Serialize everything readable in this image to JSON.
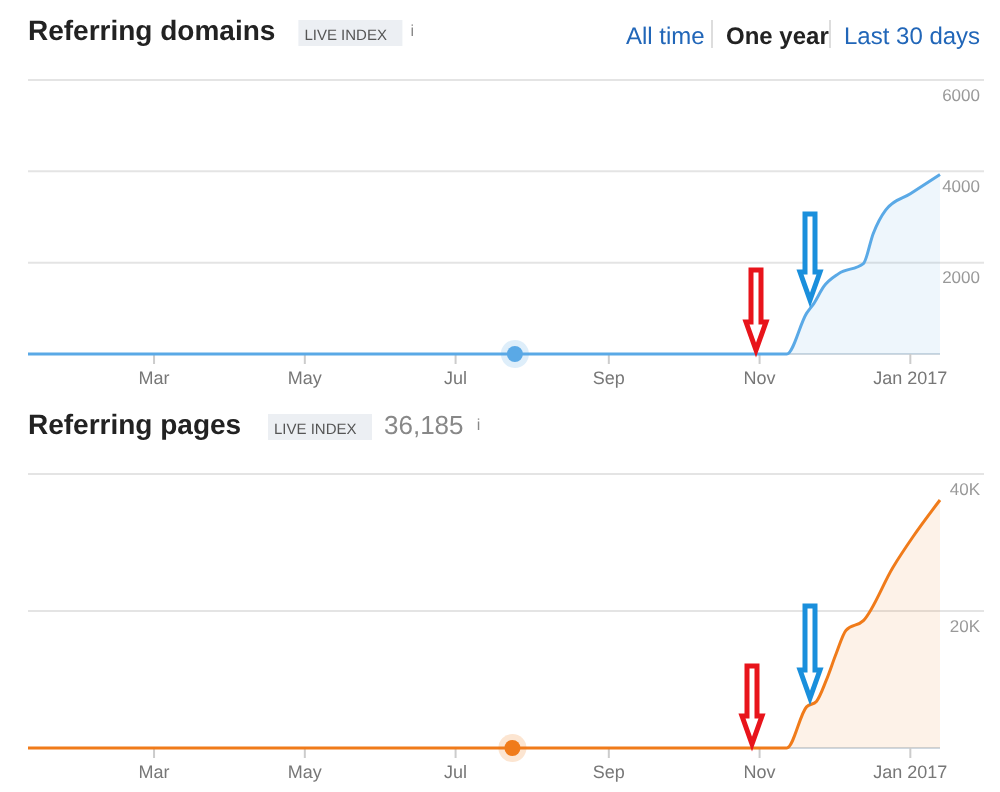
{
  "chart_data": [
    {
      "type": "area",
      "title": "Referring domains",
      "annotations": [
        "LIVE INDEX",
        "i",
        "All time",
        "One year",
        "Last 30 days"
      ],
      "xlim": [
        "2016-01-10",
        "2017-01-13"
      ],
      "xticks": [
        {
          "value": "2016-03-01",
          "label": "Mar"
        },
        {
          "value": "2016-05-01",
          "label": "May"
        },
        {
          "value": "2016-07-01",
          "label": "Jul"
        },
        {
          "value": "2016-09-01",
          "label": "Sep"
        },
        {
          "value": "2016-11-01",
          "label": "Nov"
        },
        {
          "value": "2017-01-01",
          "label": "Jan 2017"
        }
      ],
      "ylim": [
        0,
        6000
      ],
      "yticks": [
        2000,
        4000,
        6000
      ],
      "grid": "y",
      "series": [
        {
          "color": "#5aa9e6",
          "x": [
            "2016-01-10",
            "2016-11-12",
            "2016-11-20",
            "2016-11-23",
            "2016-11-27",
            "2016-12-03",
            "2016-12-13",
            "2016-12-17",
            "2016-12-22",
            "2017-01-01",
            "2017-01-13"
          ],
          "values": [
            0,
            0,
            890,
            1110,
            1480,
            1760,
            1980,
            2640,
            3150,
            3510,
            3930
          ]
        },
        {
          "type": "scatter",
          "marker": "circle",
          "color": "#5aa9e6",
          "x": [
            "2016-07-25"
          ],
          "values": [
            0
          ]
        }
      ]
    },
    {
      "type": "area",
      "title": "Referring pages",
      "subtitle": "36,185",
      "annotations": [
        "LIVE INDEX",
        "i"
      ],
      "xlim": [
        "2016-01-10",
        "2017-01-13"
      ],
      "xticks": [
        {
          "value": "2016-03-01",
          "label": "Mar"
        },
        {
          "value": "2016-05-01",
          "label": "May"
        },
        {
          "value": "2016-07-01",
          "label": "Jul"
        },
        {
          "value": "2016-09-01",
          "label": "Sep"
        },
        {
          "value": "2016-11-01",
          "label": "Nov"
        },
        {
          "value": "2017-01-01",
          "label": "Jan 2017"
        }
      ],
      "ylim": [
        0,
        40000
      ],
      "yticks": [
        {
          "value": 20000,
          "label": "20K"
        },
        {
          "value": 40000,
          "label": "40K"
        }
      ],
      "grid": "y",
      "series": [
        {
          "color": "#f07b1a",
          "x": [
            "2016-01-10",
            "2016-11-12",
            "2016-11-20",
            "2016-11-24",
            "2016-11-28",
            "2016-12-02",
            "2016-12-06",
            "2016-12-13",
            "2016-12-25",
            "2017-01-02",
            "2017-01-13"
          ],
          "values": [
            0,
            0,
            6000,
            6800,
            9900,
            13800,
            17200,
            18600,
            26400,
            30800,
            36200
          ]
        },
        {
          "type": "scatter",
          "marker": "circle",
          "color": "#f07b1a",
          "x": [
            "2016-07-24"
          ],
          "values": [
            0
          ]
        }
      ]
    }
  ]
}
